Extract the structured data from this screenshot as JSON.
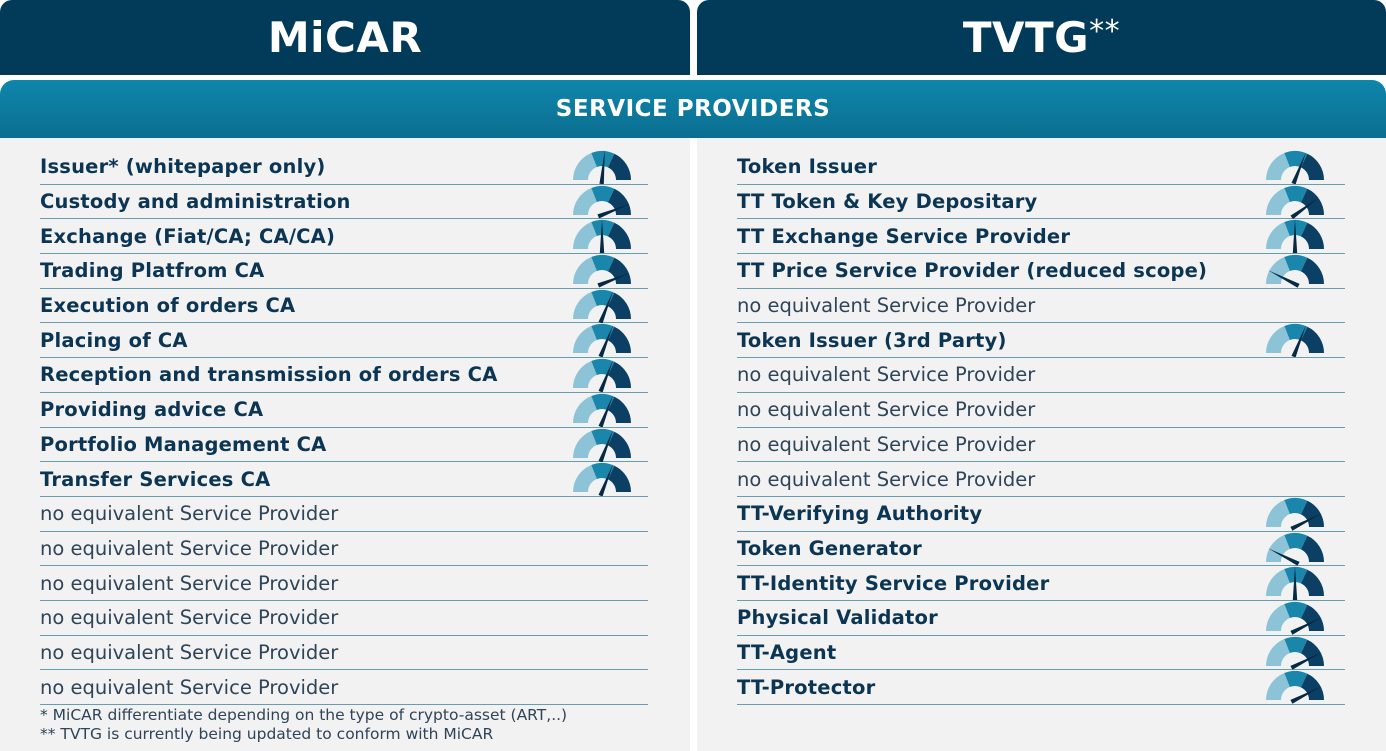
{
  "header": {
    "left_title": "MiCAR",
    "right_title": "TVTG",
    "right_title_suffix": "**",
    "band_title": "SERVICE PROVIDERS"
  },
  "colors": {
    "header_bg": "#023a5a",
    "band_bg": "#0b7ca2",
    "text": "#0b3553",
    "gauge_light": "#8cc3d6",
    "gauge_mid": "#1b86ab",
    "gauge_dark": "#0b3f63"
  },
  "left_rows": [
    {
      "label": "Issuer* (whitepaper only)",
      "bold": true,
      "gauge": 0.53
    },
    {
      "label": "Custody and administration",
      "bold": true,
      "gauge": 0.88
    },
    {
      "label": "Exchange (Fiat/CA; CA/CA)",
      "bold": true,
      "gauge": 0.5
    },
    {
      "label": "Trading Platfrom CA",
      "bold": true,
      "gauge": 0.88
    },
    {
      "label": "Execution of orders CA",
      "bold": true,
      "gauge": 0.62
    },
    {
      "label": "Placing of CA",
      "bold": true,
      "gauge": 0.62
    },
    {
      "label": "Reception and transmission of orders CA",
      "bold": true,
      "gauge": 0.62
    },
    {
      "label": "Providing advice CA",
      "bold": true,
      "gauge": 0.62
    },
    {
      "label": "Portfolio Management CA",
      "bold": true,
      "gauge": 0.62
    },
    {
      "label": "Transfer Services CA",
      "bold": true,
      "gauge": 0.62
    },
    {
      "label": "no equivalent Service Provider",
      "bold": false,
      "gauge": null
    },
    {
      "label": "no equivalent Service Provider",
      "bold": false,
      "gauge": null
    },
    {
      "label": "no equivalent Service Provider",
      "bold": false,
      "gauge": null
    },
    {
      "label": "no equivalent Service Provider",
      "bold": false,
      "gauge": null
    },
    {
      "label": "no equivalent Service Provider",
      "bold": false,
      "gauge": null
    },
    {
      "label": "no equivalent Service Provider",
      "bold": false,
      "gauge": null
    }
  ],
  "right_rows": [
    {
      "label": "Token Issuer",
      "bold": true,
      "gauge": 0.62
    },
    {
      "label": "TT Token & Key Depositary",
      "bold": true,
      "gauge": 0.8
    },
    {
      "label": "TT Exchange Service Provider",
      "bold": true,
      "gauge": 0.5
    },
    {
      "label": "TT Price Service Provider (reduced scope)",
      "bold": true,
      "gauge": 0.15
    },
    {
      "label": "no equivalent Service Provider",
      "bold": false,
      "gauge": null
    },
    {
      "label": "Token Issuer (3rd Party)",
      "bold": true,
      "gauge": 0.62
    },
    {
      "label": "no equivalent Service Provider",
      "bold": false,
      "gauge": null
    },
    {
      "label": "no equivalent Service Provider",
      "bold": false,
      "gauge": null
    },
    {
      "label": "no equivalent Service Provider",
      "bold": false,
      "gauge": null
    },
    {
      "label": "no equivalent Service Provider",
      "bold": false,
      "gauge": null
    },
    {
      "label": "TT-Verifying Authority",
      "bold": true,
      "gauge": 0.85
    },
    {
      "label": "Token Generator",
      "bold": true,
      "gauge": 0.15
    },
    {
      "label": "TT-Identity Service Provider",
      "bold": true,
      "gauge": 0.5
    },
    {
      "label": "Physical Validator",
      "bold": true,
      "gauge": 0.85
    },
    {
      "label": "TT-Agent",
      "bold": true,
      "gauge": 0.85
    },
    {
      "label": "TT-Protector",
      "bold": true,
      "gauge": 0.85
    }
  ],
  "footnotes": [
    "*    MiCAR differentiate depending on the type of crypto-asset (ART,..)",
    "** TVTG is currently being updated to conform with MiCAR"
  ]
}
